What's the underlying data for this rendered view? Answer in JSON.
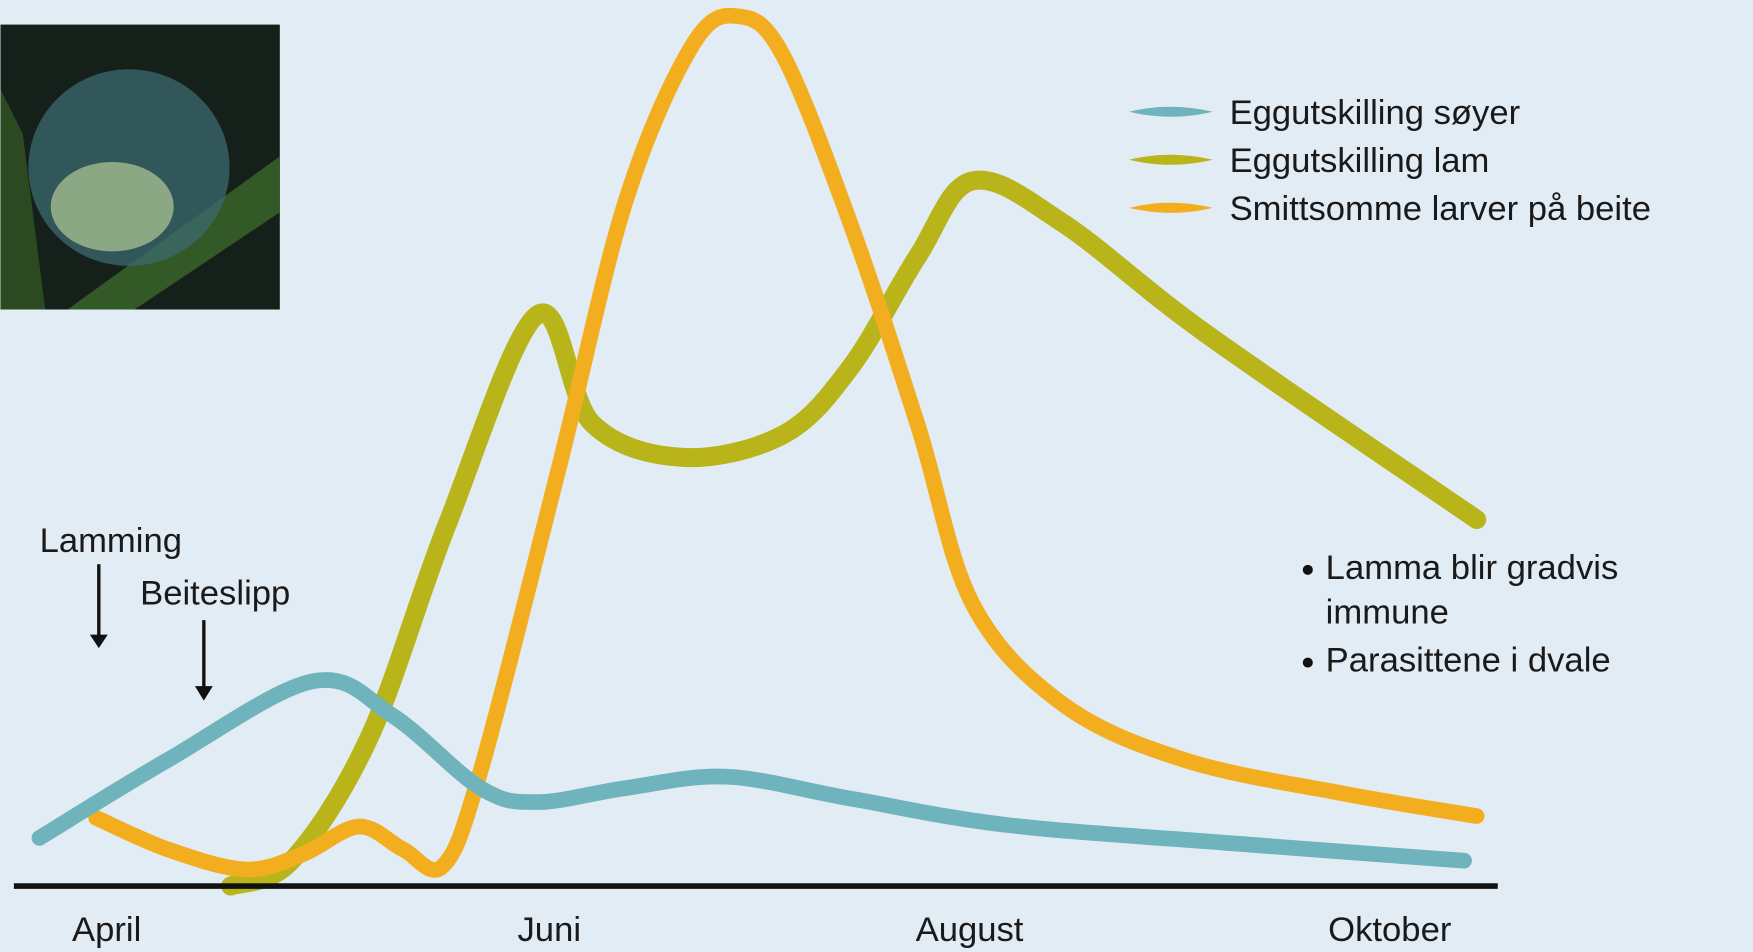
{
  "chart_data": {
    "type": "line",
    "xlim": [
      3.5,
      10.7
    ],
    "xticks": [
      {
        "value": 4,
        "label": "April"
      },
      {
        "value": 6,
        "label": "Juni"
      },
      {
        "value": 8,
        "label": "August"
      },
      {
        "value": 10,
        "label": "Oktober"
      }
    ],
    "ylim": [
      0,
      100
    ],
    "series": [
      {
        "name": "Eggutskilling søyer",
        "color": "#6fb3bc",
        "x": [
          3.68,
          4.29,
          4.98,
          5.36,
          5.78,
          6.05,
          6.47,
          6.95,
          7.54,
          8.28,
          9.35,
          10.46
        ],
        "values": [
          5.5,
          14.4,
          23.4,
          19.5,
          11.2,
          9.6,
          11.2,
          12.5,
          10.0,
          7.0,
          4.9,
          2.9
        ]
      },
      {
        "name": "Eggutskilling lam",
        "color": "#b8b41a",
        "x": [
          4.59,
          4.88,
          5.25,
          5.62,
          6.05,
          6.31,
          6.74,
          7.22,
          7.54,
          7.86,
          8.12,
          8.55,
          9.24,
          10.52
        ],
        "values": [
          0,
          2.9,
          17.0,
          41.3,
          65.3,
          52.9,
          49.0,
          51.6,
          59.3,
          72.0,
          80.6,
          75.8,
          63.0,
          41.9
        ]
      },
      {
        "name": "Smittsomme larver på beite",
        "color": "#f2ae1e",
        "x": [
          3.95,
          4.29,
          4.66,
          4.93,
          5.2,
          5.41,
          5.6,
          5.78,
          6.15,
          6.47,
          6.79,
          7.01,
          7.22,
          7.54,
          7.86,
          8.12,
          8.55,
          9.13,
          9.88,
          10.52
        ],
        "values": [
          7.8,
          4.2,
          1.9,
          3.6,
          6.8,
          4.2,
          2.3,
          13.2,
          47.6,
          78.3,
          96.2,
          99.4,
          94.9,
          75.7,
          52.7,
          32.3,
          20.8,
          14.4,
          10.6,
          8.0
        ]
      }
    ],
    "annotations": [
      "Lamming",
      "Beiteslipp"
    ],
    "notes": [
      "Lamma blir gradvis immune",
      "Parasittene i dvale"
    ]
  }
}
